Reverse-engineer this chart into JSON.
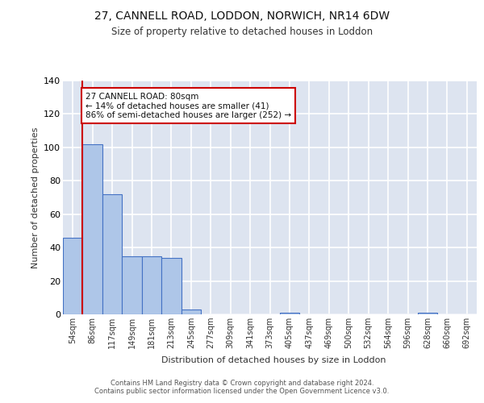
{
  "title1": "27, CANNELL ROAD, LODDON, NORWICH, NR14 6DW",
  "title2": "Size of property relative to detached houses in Loddon",
  "xlabel": "Distribution of detached houses by size in Loddon",
  "ylabel": "Number of detached properties",
  "categories": [
    "54sqm",
    "86sqm",
    "117sqm",
    "149sqm",
    "181sqm",
    "213sqm",
    "245sqm",
    "277sqm",
    "309sqm",
    "341sqm",
    "373sqm",
    "405sqm",
    "437sqm",
    "469sqm",
    "500sqm",
    "532sqm",
    "564sqm",
    "596sqm",
    "628sqm",
    "660sqm",
    "692sqm"
  ],
  "values": [
    46,
    102,
    72,
    35,
    35,
    34,
    3,
    0,
    0,
    0,
    0,
    1,
    0,
    0,
    0,
    0,
    0,
    0,
    1,
    0,
    0
  ],
  "bar_color": "#aec6e8",
  "bar_edge_color": "#4472c4",
  "background_color": "#dde4f0",
  "grid_color": "#ffffff",
  "vline_x": 0.5,
  "vline_color": "#cc0000",
  "annotation_text": "27 CANNELL ROAD: 80sqm\n← 14% of detached houses are smaller (41)\n86% of semi-detached houses are larger (252) →",
  "annotation_box_color": "#ffffff",
  "annotation_box_edge": "#cc0000",
  "footer": "Contains HM Land Registry data © Crown copyright and database right 2024.\nContains public sector information licensed under the Open Government Licence v3.0.",
  "ylim": [
    0,
    140
  ],
  "yticks": [
    0,
    20,
    40,
    60,
    80,
    100,
    120,
    140
  ]
}
